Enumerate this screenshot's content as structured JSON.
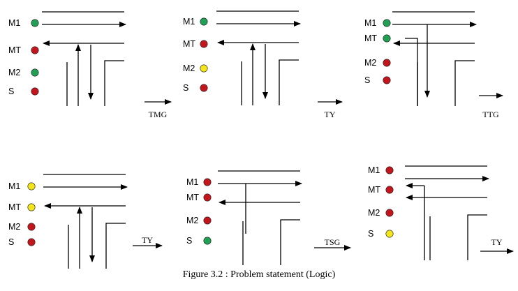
{
  "colors": {
    "green": "#21a055",
    "red": "#c3161c",
    "yellow": "#f3e41c",
    "stroke": "#000000"
  },
  "panels": [
    {
      "lights": [
        {
          "label": "M1",
          "state": "green"
        },
        {
          "label": "MT",
          "state": "red"
        },
        {
          "label": "M2",
          "state": "green"
        },
        {
          "label": "S",
          "state": "red"
        }
      ]
    },
    {
      "lights": [
        {
          "label": "M1",
          "state": "green"
        },
        {
          "label": "MT",
          "state": "red"
        },
        {
          "label": "M2",
          "state": "yellow"
        },
        {
          "label": "S",
          "state": "red"
        }
      ]
    },
    {
      "lights": [
        {
          "label": "M1",
          "state": "green"
        },
        {
          "label": "MT",
          "state": "green"
        },
        {
          "label": "M2",
          "state": "red"
        },
        {
          "label": "S",
          "state": "red"
        }
      ]
    },
    {
      "lights": [
        {
          "label": "M1",
          "state": "yellow"
        },
        {
          "label": "MT",
          "state": "yellow"
        },
        {
          "label": "M2",
          "state": "red"
        },
        {
          "label": "S",
          "state": "red"
        }
      ]
    },
    {
      "lights": [
        {
          "label": "M1",
          "state": "red"
        },
        {
          "label": "MT",
          "state": "red"
        },
        {
          "label": "M2",
          "state": "red"
        },
        {
          "label": "S",
          "state": "green"
        }
      ]
    },
    {
      "lights": [
        {
          "label": "M1",
          "state": "red"
        },
        {
          "label": "MT",
          "state": "red"
        },
        {
          "label": "M2",
          "state": "red"
        },
        {
          "label": "S",
          "state": "yellow"
        }
      ]
    }
  ],
  "transitions": [
    "TMG",
    "TY",
    "TTG",
    "TY",
    "TSG",
    "TY"
  ],
  "caption": "Figure 3.2 : Problem statement (Logic)"
}
